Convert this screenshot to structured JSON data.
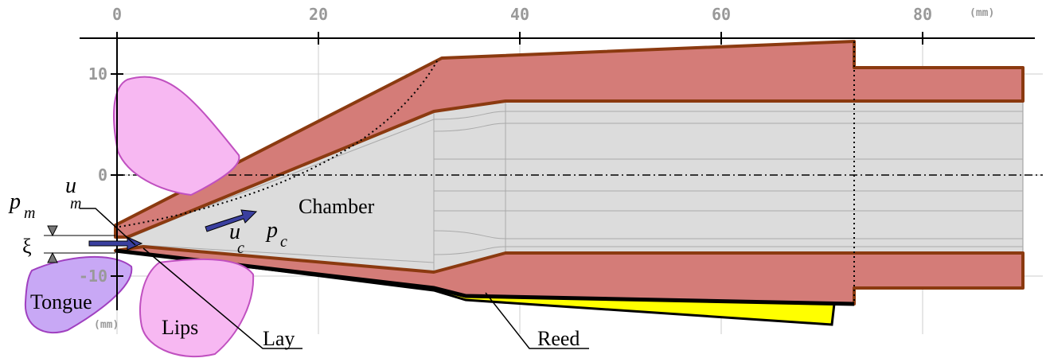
{
  "axes": {
    "x_ticks": [
      0,
      20,
      40,
      60,
      80
    ],
    "x_unit": "(mm)",
    "y_ticks": [
      10,
      0,
      -10
    ],
    "y_unit": "(mm)"
  },
  "labels": {
    "p_m": {
      "symbol": "p",
      "subscript": "m"
    },
    "u_m": {
      "symbol": "u",
      "subscript": "m"
    },
    "xi": "ξ",
    "tongue": "Tongue",
    "lips": "Lips",
    "lay": "Lay",
    "reed": "Reed",
    "chamber": "Chamber",
    "u_c": {
      "symbol": "u",
      "subscript": "c"
    },
    "p_c": {
      "symbol": "p",
      "subscript": "c"
    }
  }
}
